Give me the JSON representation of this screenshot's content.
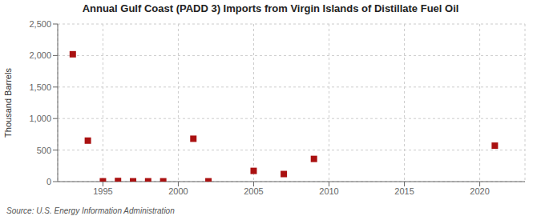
{
  "chart_data": {
    "type": "scatter",
    "title": "Annual Gulf Coast (PADD 3) Imports from Virgin Islands of Distillate Fuel Oil",
    "ylabel": "Thousand Barrels",
    "annotations": [
      "Source: U.S. Energy Information Administration"
    ],
    "x": [
      1993,
      1994,
      1995,
      1996,
      1997,
      1998,
      1999,
      2001,
      2002,
      2005,
      2007,
      2009,
      2021
    ],
    "values": [
      2020,
      650,
      5,
      10,
      5,
      5,
      5,
      680,
      5,
      170,
      120,
      360,
      570
    ],
    "color": "#aa1111",
    "marker": "square",
    "xlim": [
      1992,
      2023
    ],
    "xticks": [
      1995,
      2000,
      2005,
      2010,
      2015,
      2020
    ],
    "ylim": [
      0,
      2500
    ],
    "yticks": [
      0,
      500,
      {
        "value": 1000,
        "label": "1,000"
      },
      {
        "value": 1500,
        "label": "1,500"
      },
      {
        "value": 2000,
        "label": "2,000"
      },
      {
        "value": 2500,
        "label": "2,500"
      }
    ],
    "grid": true
  }
}
